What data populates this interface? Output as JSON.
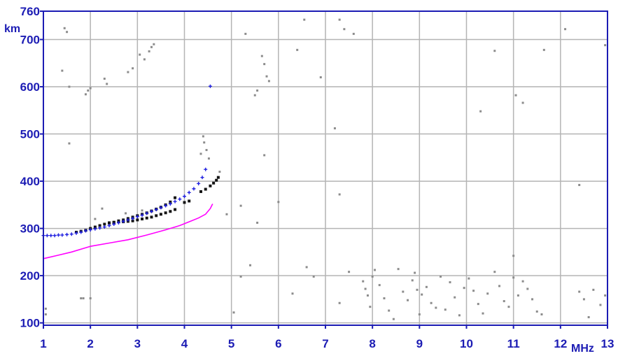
{
  "chart_data": {
    "type": "scatter",
    "title": "",
    "xlabel": "MHz",
    "ylabel": "km",
    "xlim": [
      1,
      13
    ],
    "ylim": [
      95,
      760
    ],
    "x_ticks": [
      1,
      2,
      3,
      4,
      5,
      6,
      7,
      8,
      9,
      10,
      11,
      12,
      13
    ],
    "x_tick_labels": [
      "1",
      "2",
      "3",
      "4",
      "5",
      "6",
      "7",
      "8",
      "9",
      "10",
      "11",
      "12",
      "13"
    ],
    "y_ticks": [
      100,
      200,
      300,
      400,
      500,
      600,
      700,
      760
    ],
    "y_tick_labels": [
      "100",
      "200",
      "300",
      "400",
      "500",
      "600",
      "700",
      "760"
    ],
    "grid": true,
    "colors": {
      "axis": "#1c1cb4",
      "grid": "#b4b4b4",
      "noise": "#8c8c8c",
      "trace": "#141414",
      "fit_blue": "#2020e0",
      "fit_magenta": "#ff00ff"
    },
    "series": [
      {
        "style": "line",
        "color": "#ff00ff",
        "x": [
          1.0,
          1.3,
          1.6,
          2.0,
          2.4,
          2.8,
          3.2,
          3.6,
          3.9,
          4.1,
          4.3,
          4.45,
          4.55,
          4.6
        ],
        "y": [
          236,
          243,
          250,
          262,
          269,
          276,
          286,
          297,
          306,
          314,
          322,
          330,
          342,
          352
        ]
      },
      {
        "style": "plus",
        "color": "#2020e0",
        "x": [
          1.0,
          1.08,
          1.16,
          1.24,
          1.32,
          1.4,
          1.5,
          1.6,
          1.7,
          1.8,
          1.9,
          2.0,
          2.1,
          2.2,
          2.3,
          2.4,
          2.5,
          2.6,
          2.7,
          2.8,
          2.9,
          3.0,
          3.1,
          3.2,
          3.3,
          3.4,
          3.5,
          3.6,
          3.7,
          3.8,
          3.9,
          4.0,
          4.1,
          4.2,
          4.3,
          4.38,
          4.45,
          4.55
        ],
        "y": [
          285,
          285,
          285,
          285,
          286,
          286,
          287,
          288,
          290,
          292,
          295,
          297,
          299,
          301,
          303,
          306,
          309,
          312,
          315,
          318,
          321,
          325,
          328,
          332,
          336,
          340,
          344,
          348,
          352,
          357,
          362,
          368,
          376,
          384,
          395,
          408,
          425,
          601
        ]
      },
      {
        "style": "points",
        "color": "#141414",
        "x": [
          1.7,
          1.8,
          1.9,
          2.0,
          2.1,
          2.2,
          2.3,
          2.4,
          2.5,
          2.6,
          2.7,
          2.8,
          2.9,
          3.0,
          3.1,
          3.2,
          3.3,
          3.4,
          3.5,
          3.6,
          3.7,
          3.8,
          2.4,
          2.5,
          2.6,
          2.7,
          2.8,
          2.9,
          3.0,
          3.1,
          3.2,
          3.3,
          3.4,
          3.5,
          3.6,
          3.7,
          3.8,
          4.0,
          4.1,
          4.35,
          4.45,
          4.55,
          4.62,
          4.68,
          4.72
        ],
        "y": [
          292,
          294,
          296,
          300,
          303,
          306,
          309,
          311,
          313,
          316,
          318,
          321,
          324,
          327,
          330,
          333,
          337,
          341,
          345,
          350,
          356,
          365,
          312,
          313,
          314,
          314,
          315,
          316,
          318,
          320,
          322,
          324,
          327,
          330,
          333,
          336,
          340,
          355,
          358,
          378,
          383,
          390,
          396,
          402,
          408
        ]
      },
      {
        "style": "noise",
        "color": "#8c8c8c",
        "x": [
          1.4,
          1.45,
          1.5,
          1.55,
          1.9,
          1.95,
          2.0,
          2.3,
          2.35,
          2.8,
          2.9,
          3.05,
          3.15,
          3.25,
          3.3,
          3.35,
          4.35,
          4.4,
          4.42,
          4.47,
          4.52,
          4.75,
          1.55,
          1.8,
          1.85,
          2.0,
          2.1,
          2.25,
          5.3,
          5.5,
          5.55,
          5.65,
          5.7,
          5.75,
          5.8,
          6.4,
          6.55,
          6.9,
          7.2,
          7.3,
          7.4,
          7.6,
          10.3,
          10.6,
          11.05,
          11.2,
          11.65,
          12.1,
          12.95,
          1.05,
          1.05,
          5.05,
          5.2,
          5.4,
          5.55,
          5.7,
          6.3,
          6.6,
          6.75,
          7.3,
          7.5,
          7.8,
          7.85,
          7.9,
          7.95,
          8.0,
          8.05,
          8.15,
          8.25,
          8.35,
          8.45,
          8.55,
          8.65,
          8.75,
          8.85,
          8.9,
          8.95,
          9.0,
          9.05,
          9.15,
          9.25,
          9.35,
          9.45,
          9.55,
          9.65,
          9.75,
          9.85,
          9.95,
          10.05,
          10.15,
          10.25,
          10.35,
          10.45,
          10.6,
          10.7,
          10.8,
          10.9,
          11.0,
          11.1,
          11.2,
          11.3,
          11.4,
          11.5,
          11.6,
          12.4,
          12.5,
          12.6,
          12.7,
          12.85,
          12.95,
          11.0,
          12.4,
          2.75,
          3.1,
          4.9,
          5.2,
          6.0,
          7.3
        ],
        "y": [
          634,
          724,
          716,
          600,
          584,
          592,
          597,
          617,
          606,
          631,
          639,
          668,
          658,
          675,
          684,
          690,
          458,
          495,
          482,
          466,
          448,
          420,
          480,
          152,
          152,
          152,
          320,
          342,
          712,
          582,
          592,
          665,
          648,
          622,
          612,
          678,
          742,
          620,
          512,
          742,
          722,
          712,
          548,
          676,
          582,
          566,
          678,
          722,
          688,
          118,
          130,
          122,
          198,
          222,
          312,
          455,
          162,
          218,
          198,
          142,
          208,
          188,
          172,
          158,
          134,
          198,
          212,
          180,
          152,
          126,
          108,
          214,
          166,
          148,
          190,
          206,
          170,
          118,
          160,
          176,
          142,
          132,
          198,
          128,
          186,
          154,
          116,
          174,
          194,
          168,
          140,
          120,
          162,
          208,
          178,
          146,
          134,
          196,
          158,
          188,
          172,
          150,
          124,
          118,
          166,
          150,
          112,
          170,
          138,
          158,
          242,
          392,
          332,
          338,
          330,
          348,
          356,
          372
        ]
      }
    ]
  }
}
